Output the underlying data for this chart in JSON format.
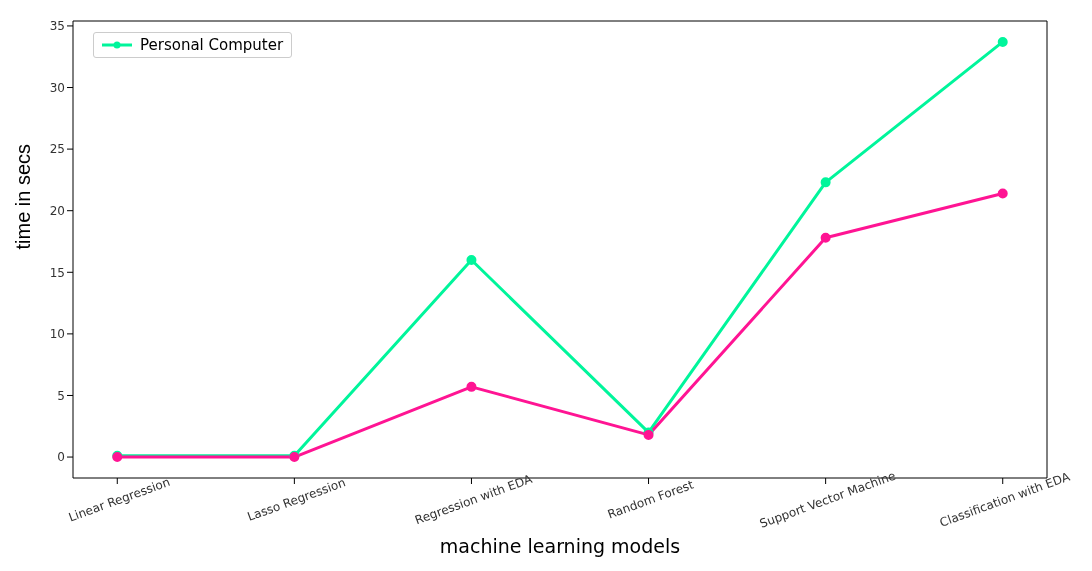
{
  "chart_data": {
    "type": "line",
    "xlabel": "machine learning models",
    "ylabel": "time in secs",
    "categories": [
      "Linear Regression",
      "Lasso Regression",
      "Regression with EDA",
      "Random Forest",
      "Support Vector Machine",
      "Classification with EDA"
    ],
    "series": [
      {
        "name": "Personal Computer",
        "color": "#00f59b",
        "values": [
          0.1,
          0.1,
          16.0,
          2.0,
          22.3,
          33.7
        ]
      },
      {
        "color": "#ff1493",
        "values": [
          0,
          0,
          5.7,
          1.8,
          17.8,
          21.4
        ]
      }
    ],
    "ylim": [
      -1.7,
      35.4
    ],
    "yticks": [
      0,
      5,
      10,
      15,
      20,
      25,
      30,
      35
    ],
    "grid": false,
    "legend": "top left",
    "marker": "circle",
    "line_style": "solid"
  }
}
